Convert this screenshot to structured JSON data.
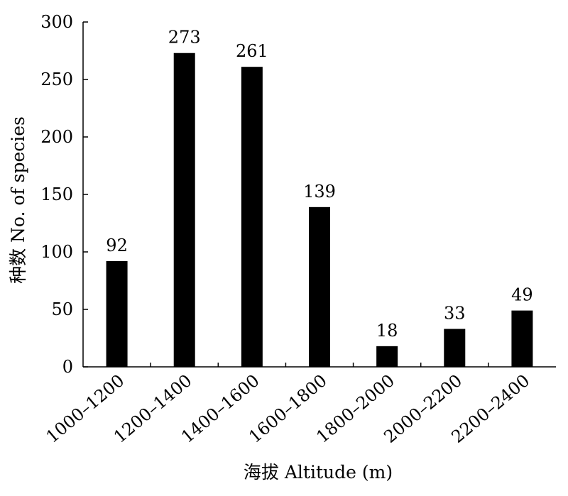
{
  "chart_data": {
    "type": "bar",
    "title": "",
    "xlabel": "海拔 Altitude (m)",
    "ylabel": "种数 No. of species",
    "categories": [
      "1000–1200",
      "1200–1400",
      "1400–1600",
      "1600–1800",
      "1800–2000",
      "2000–2200",
      "2200–2400"
    ],
    "values": [
      92,
      273,
      261,
      139,
      18,
      33,
      49
    ],
    "data_labels": [
      "92",
      "273",
      "261",
      "139",
      "18",
      "33",
      "49"
    ],
    "ylim": [
      0,
      300
    ],
    "yticks": [
      0,
      50,
      100,
      150,
      200,
      250,
      300
    ],
    "grid": false,
    "legend": "none",
    "bar_color": "#000000"
  }
}
